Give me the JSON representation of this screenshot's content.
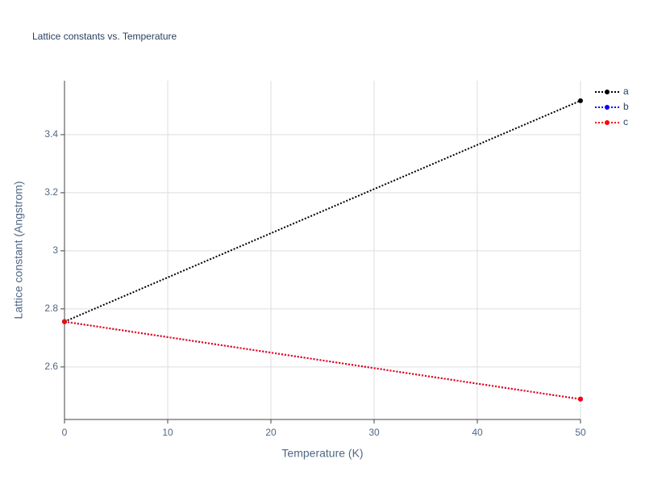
{
  "chart_data": {
    "type": "line",
    "title": "Lattice constants vs. Temperature",
    "x_label": "Temperature (K)",
    "y_label": "Lattice constant (Angstrom)",
    "x": [
      0,
      50
    ],
    "series": [
      {
        "name": "a",
        "color": "#000000",
        "values": [
          2.756,
          3.517
        ]
      },
      {
        "name": "b",
        "color": "#0000ff",
        "values": [
          2.756,
          2.489
        ]
      },
      {
        "name": "c",
        "color": "#ff0000",
        "values": [
          2.756,
          2.489
        ]
      }
    ],
    "xlim": [
      0,
      50
    ],
    "xticks": [
      0,
      10,
      20,
      30,
      40,
      50
    ],
    "ylim": [
      2.419,
      3.586
    ],
    "yticks": [
      2.6,
      2.8,
      3,
      3.2,
      3.4
    ],
    "grid": true,
    "legend": "top-right"
  }
}
